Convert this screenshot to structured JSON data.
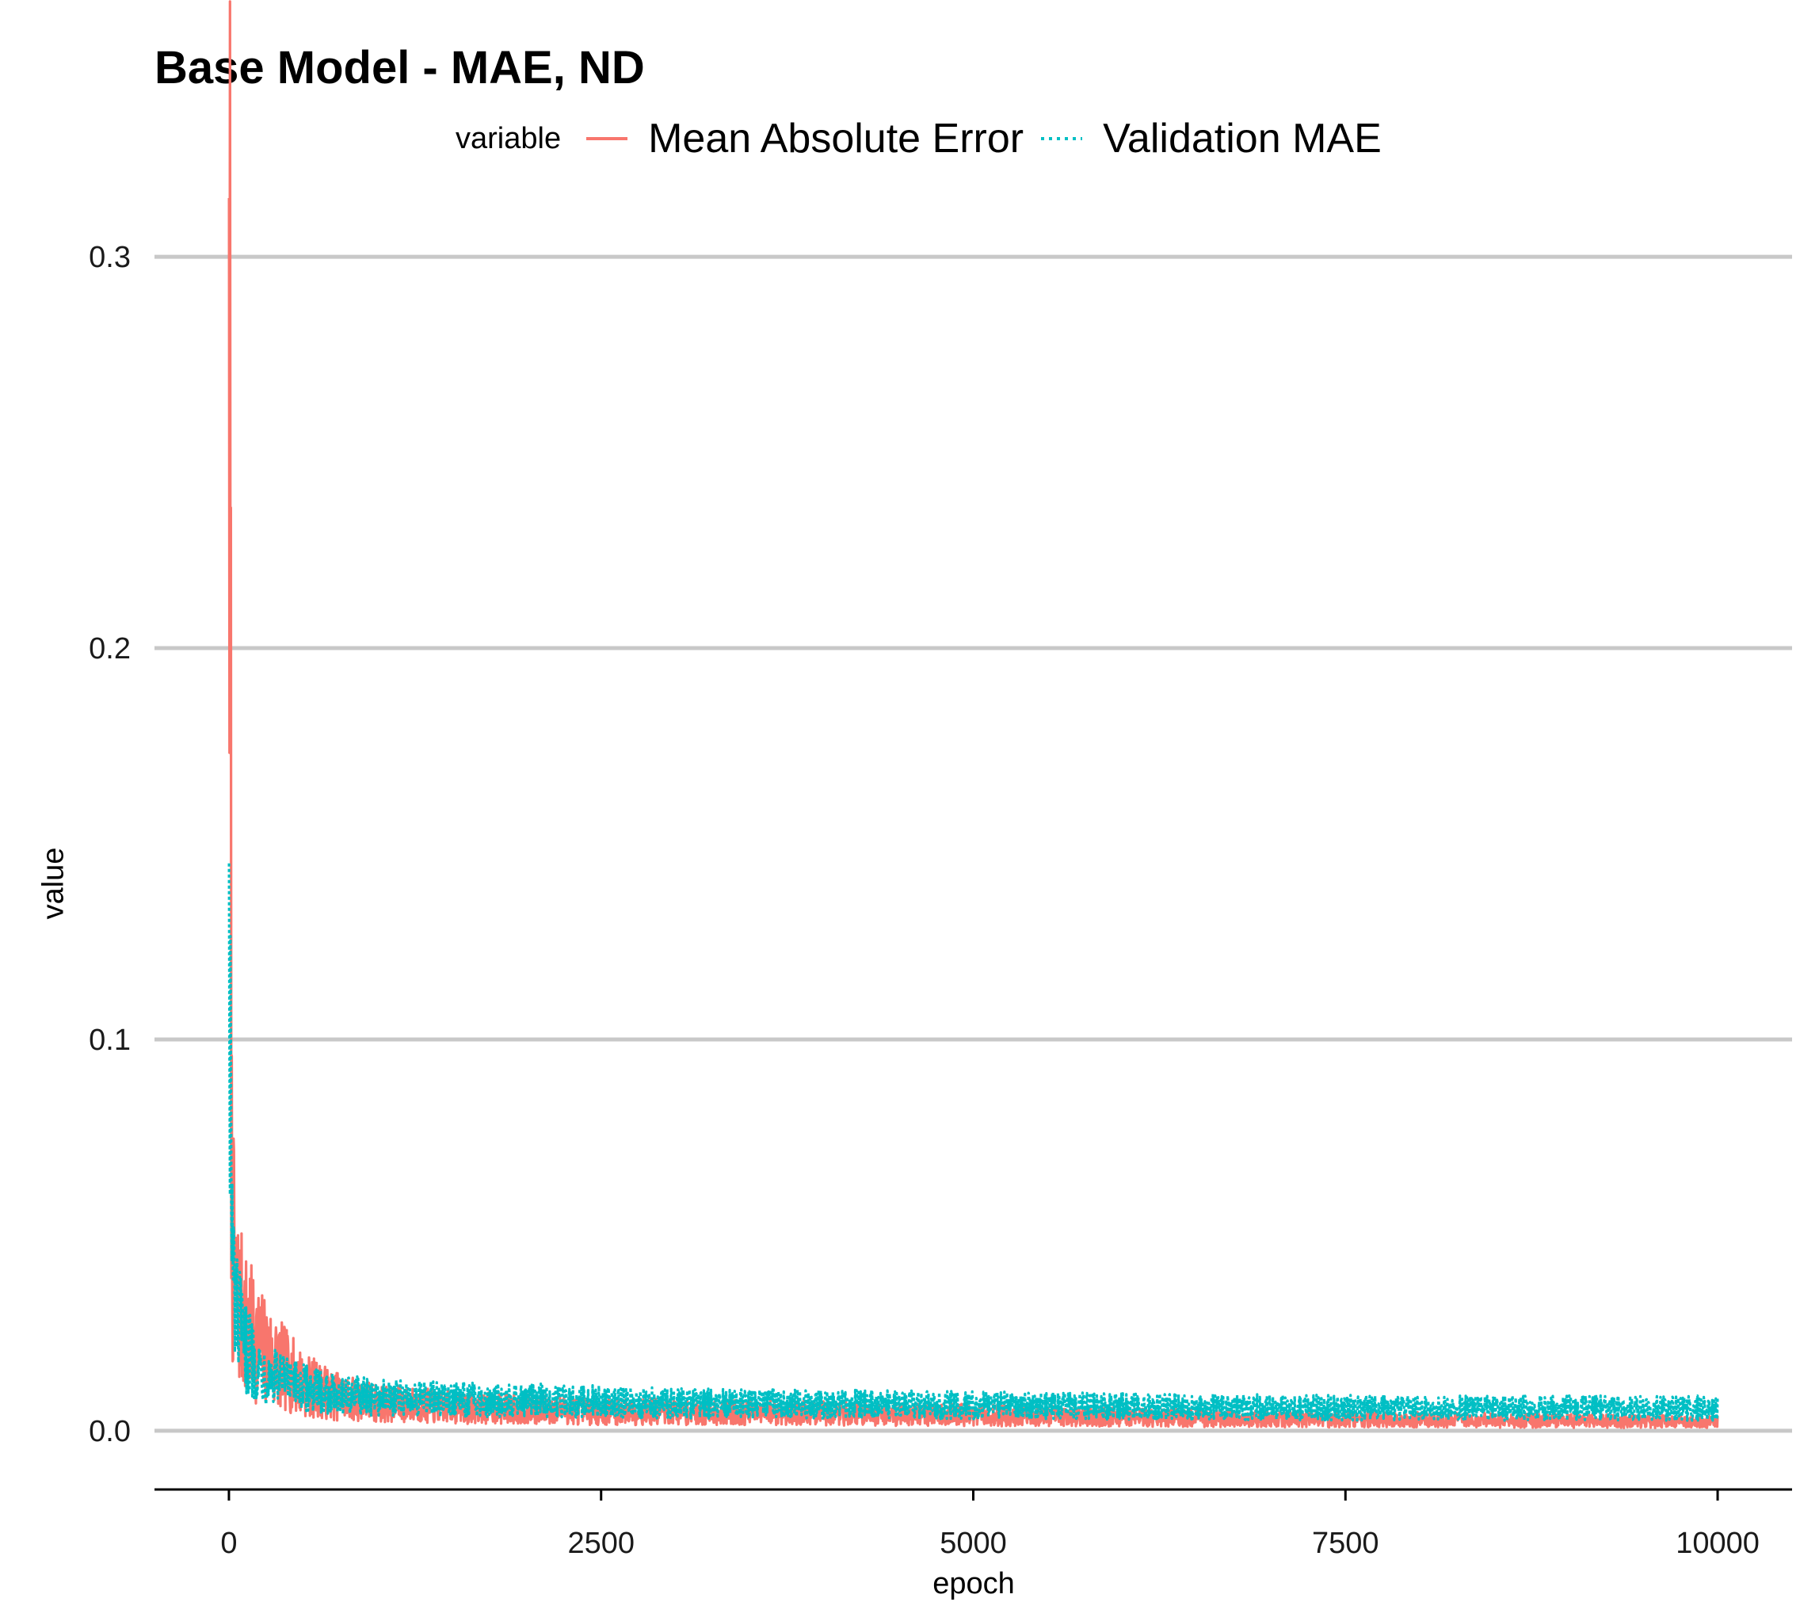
{
  "chart_data": {
    "type": "line",
    "title": "Base Model - MAE, ND",
    "xlabel": "epoch",
    "ylabel": "value",
    "legend": {
      "title": "variable",
      "placement": "top",
      "entries": [
        "Mean Absolute Error",
        "Validation MAE"
      ]
    },
    "xlim": [
      -500,
      10500
    ],
    "ylim": [
      -0.015,
      0.315
    ],
    "x_ticks": [
      0,
      2500,
      5000,
      7500,
      10000
    ],
    "x_tick_labels": [
      "0",
      "2500",
      "5000",
      "7500",
      "10000"
    ],
    "y_ticks": [
      0.0,
      0.1,
      0.2,
      0.3
    ],
    "y_tick_labels": [
      "0.0",
      "0.1",
      "0.2",
      "0.3"
    ],
    "grid": "horizontal major",
    "series": [
      {
        "name": "Mean Absolute Error",
        "color": "#F8766D",
        "linestyle": "solid",
        "x": [
          1,
          20,
          50,
          100,
          200,
          300,
          400,
          500,
          700,
          1000,
          1500,
          2000,
          2500,
          3000,
          4000,
          5000,
          6000,
          7000,
          8000,
          9000,
          10000
        ],
        "values": [
          0.315,
          0.05,
          0.035,
          0.028,
          0.022,
          0.018,
          0.015,
          0.012,
          0.009,
          0.007,
          0.006,
          0.0055,
          0.005,
          0.0048,
          0.0045,
          0.004,
          0.0035,
          0.003,
          0.0028,
          0.0025,
          0.0023
        ]
      },
      {
        "name": "Validation MAE",
        "color": "#00BFC4",
        "linestyle": "dotted",
        "x": [
          1,
          20,
          50,
          100,
          200,
          300,
          400,
          500,
          700,
          1000,
          1500,
          2000,
          2500,
          3000,
          4000,
          5000,
          6000,
          7000,
          8000,
          9000,
          10000
        ],
        "values": [
          0.145,
          0.045,
          0.03,
          0.022,
          0.016,
          0.014,
          0.012,
          0.011,
          0.0095,
          0.0085,
          0.008,
          0.0078,
          0.0075,
          0.007,
          0.0068,
          0.0065,
          0.0062,
          0.006,
          0.0058,
          0.0058,
          0.0058
        ]
      }
    ]
  }
}
